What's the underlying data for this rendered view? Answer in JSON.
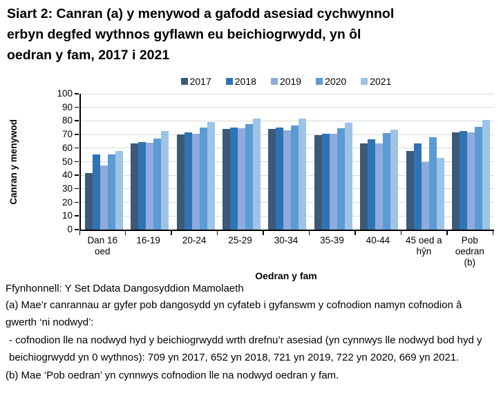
{
  "title": "Siart 2: Canran (a) y menywod a gafodd asesiad cychwynnol\nerbyn degfed wythnos gyflawn eu beichiogrwydd, yn ôl\noedran y fam, 2017 i 2021",
  "chart_data": {
    "type": "bar",
    "title": "Siart 2: Canran (a) y menywod a gafodd asesiad cychwynnol erbyn degfed wythnos gyflawn eu beichiogrwydd, yn ôl oedran y fam, 2017 i 2021",
    "xlabel": "Oedran y fam",
    "ylabel": "Canran y menywod",
    "ylim": [
      0,
      100
    ],
    "yticks": [
      0,
      10,
      20,
      30,
      40,
      50,
      60,
      70,
      80,
      90,
      100
    ],
    "grid": true,
    "legend_position": "top",
    "categories": [
      "Dan 16 oed",
      "16-19",
      "20-24",
      "25-29",
      "30-34",
      "35-39",
      "40-44",
      "45 oed a hŷn",
      "Pob oedran (b)"
    ],
    "xtick_labels": [
      "Dan 16\noed",
      "16-19",
      "20-24",
      "25-29",
      "30-34",
      "35-39",
      "40-44",
      "45 oed a\nhŷn",
      "Pob\noedran\n(b)"
    ],
    "series": [
      {
        "name": "2017",
        "color": "#3c5a78",
        "values": [
          41.5,
          63.5,
          70,
          74,
          74,
          69.5,
          63.5,
          58,
          71.5
        ]
      },
      {
        "name": "2018",
        "color": "#2e74b5",
        "values": [
          55.5,
          64.5,
          71.5,
          75,
          75,
          70.5,
          66.5,
          63.5,
          72.5
        ]
      },
      {
        "name": "2019",
        "color": "#8faadc",
        "values": [
          47,
          64,
          70.5,
          74.5,
          73,
          70.5,
          63.5,
          50,
          71.5
        ]
      },
      {
        "name": "2020",
        "color": "#5b9bd5",
        "values": [
          55.5,
          67,
          75,
          77.5,
          76.5,
          74.5,
          71,
          68,
          75.5
        ]
      },
      {
        "name": "2021",
        "color": "#9dc3e6",
        "values": [
          58,
          72.5,
          79,
          82,
          82,
          78.5,
          73.5,
          53,
          80.5
        ]
      }
    ],
    "axis_color": "#000000",
    "gridline_color": "#d9d9d9"
  },
  "footnotes": {
    "source": "Ffynhonnell: Y Set Ddata Dangosyddion Mamolaeth",
    "note_a": "(a) Mae’r canrannau ar gyfer pob dangosydd yn cyfateb i gyfanswm y cofnodion namyn cofnodion â gwerth ‘ni nodwyd’:",
    "note_a_detail": "- cofnodion lle na nodwyd hyd y beichiogrwydd wrth drefnu’r asesiad (yn cynnwys lle nodwyd bod hyd y beichiogrwydd yn 0 wythnos): 709 yn 2017, 652 yn 2018, 721 yn 2019, 722 yn 2020, 669 yn 2021.",
    "note_b": "(b) Mae ‘Pob oedran’ yn cynnwys cofnodion lle na nodwyd oedran y fam."
  }
}
